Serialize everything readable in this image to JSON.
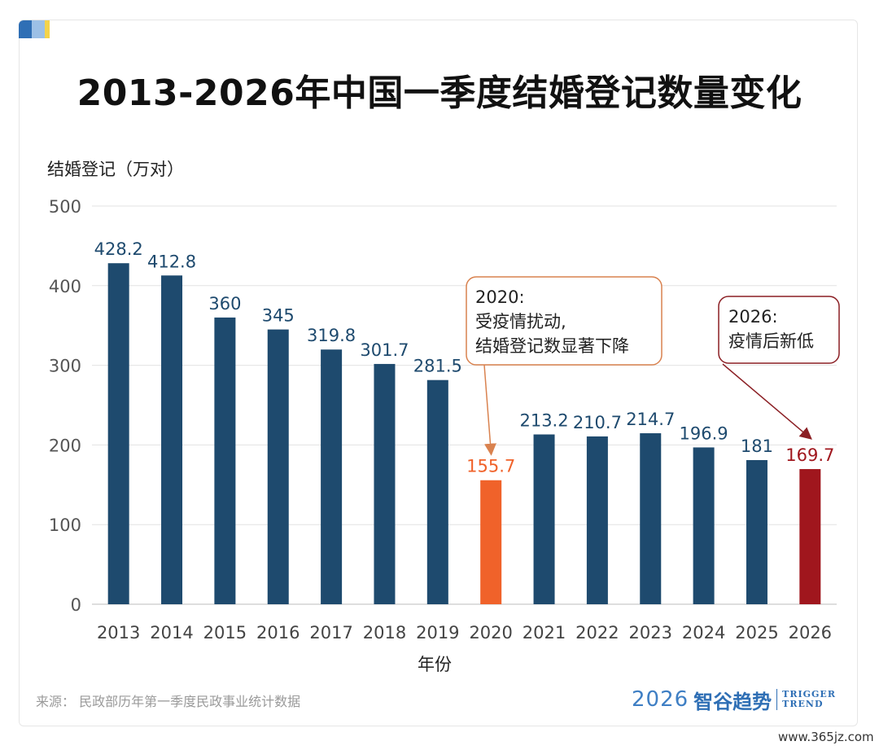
{
  "title": "2013-2026年中国一季度结婚登记数量变化",
  "source": "来源：  民政部历年第一季度民政事业统计数据",
  "logo": {
    "year": "2026",
    "cn": "智谷趋势",
    "en_line1": "TRIGGER",
    "en_line2": "TREND"
  },
  "watermark": "www.365jz.com",
  "colors": {
    "default_bar": "#1e4a6e",
    "highlight_2020": "#f0622a",
    "highlight_2026": "#a0161d",
    "annotation_2020_border": "#d9824f",
    "annotation_2026_border": "#8b1f24"
  },
  "annotations": [
    {
      "year": "2020",
      "lines": [
        "2020:",
        "受疫情扰动,",
        "结婚登记数显著下降"
      ]
    },
    {
      "year": "2026",
      "lines": [
        "2026:",
        "疫情后新低"
      ]
    }
  ],
  "chart_data": {
    "type": "bar",
    "title": "2013-2026年中国一季度结婚登记数量变化",
    "xlabel": "年份",
    "ylabel": "结婚登记（万对）",
    "ylim": [
      0,
      500
    ],
    "yticks": [
      0,
      100,
      200,
      300,
      400,
      500
    ],
    "grid": true,
    "categories": [
      "2013",
      "2014",
      "2015",
      "2016",
      "2017",
      "2018",
      "2019",
      "2020",
      "2021",
      "2022",
      "2023",
      "2024",
      "2025",
      "2026"
    ],
    "values": [
      428.2,
      412.8,
      360,
      345,
      319.8,
      301.7,
      281.5,
      155.7,
      213.2,
      210.7,
      214.7,
      196.9,
      181,
      169.7
    ],
    "value_labels": [
      "428.2",
      "412.8",
      "360",
      "345",
      "319.8",
      "301.7",
      "281.5",
      "155.7",
      "213.2",
      "210.7",
      "214.7",
      "196.9",
      "181",
      "169.7"
    ]
  }
}
